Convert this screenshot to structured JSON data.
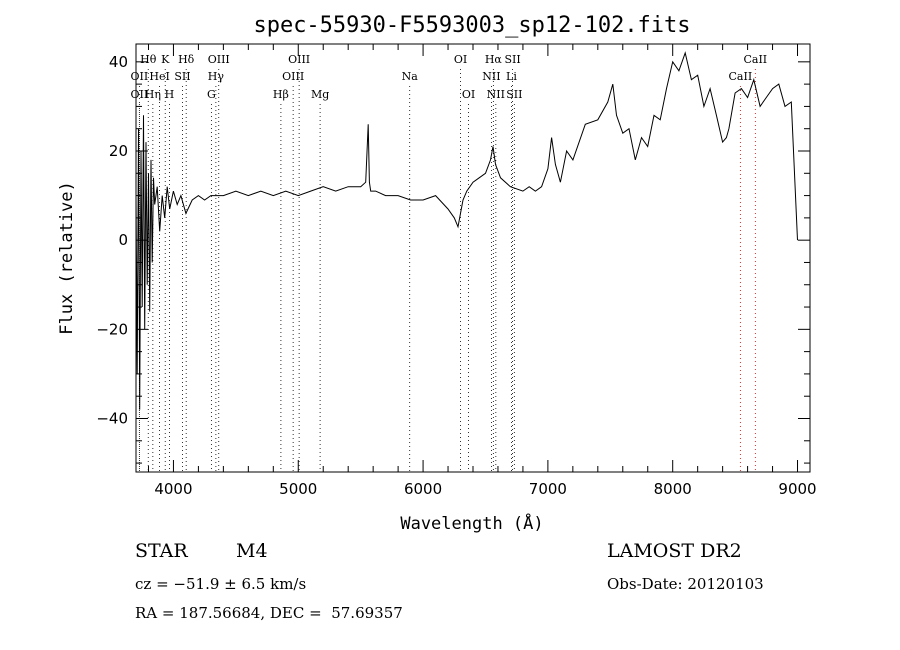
{
  "chart_data": {
    "type": "line",
    "title": "spec-55930-F5593003_sp12-102.fits",
    "xlabel": "Wavelength (Å)",
    "ylabel": "Flux (relative)",
    "xlim": [
      3700,
      9100
    ],
    "ylim": [
      -52,
      44
    ],
    "x_ticks": [
      4000,
      5000,
      6000,
      7000,
      8000,
      9000
    ],
    "y_ticks": [
      -40,
      -20,
      0,
      20,
      40
    ],
    "grid": false,
    "series": [
      {
        "color": "#000000",
        "x": [
          3700,
          3710,
          3720,
          3730,
          3740,
          3750,
          3760,
          3770,
          3780,
          3790,
          3800,
          3810,
          3820,
          3830,
          3840,
          3850,
          3870,
          3890,
          3910,
          3930,
          3950,
          3970,
          4000,
          4030,
          4060,
          4100,
          4150,
          4200,
          4250,
          4300,
          4400,
          4500,
          4600,
          4700,
          4800,
          4900,
          5000,
          5100,
          5200,
          5300,
          5400,
          5500,
          5540,
          5560,
          5570,
          5580,
          5620,
          5700,
          5800,
          5900,
          6000,
          6100,
          6200,
          6250,
          6280,
          6300,
          6320,
          6350,
          6400,
          6450,
          6500,
          6540,
          6560,
          6580,
          6620,
          6700,
          6800,
          6850,
          6900,
          6950,
          7000,
          7030,
          7060,
          7100,
          7150,
          7200,
          7300,
          7400,
          7480,
          7520,
          7550,
          7600,
          7650,
          7700,
          7750,
          7800,
          7850,
          7900,
          7950,
          8000,
          8050,
          8100,
          8150,
          8200,
          8250,
          8300,
          8350,
          8400,
          8430,
          8450,
          8500,
          8550,
          8600,
          8650,
          8700,
          8750,
          8800,
          8850,
          8900,
          8950,
          9000
        ],
        "values": [
          10,
          -30,
          25,
          -38,
          20,
          -15,
          28,
          -20,
          22,
          -10,
          15,
          -16,
          18,
          -5,
          14,
          8,
          12,
          2,
          10,
          5,
          12,
          7,
          11,
          8,
          10,
          6,
          9,
          10,
          9,
          10,
          10,
          11,
          10,
          11,
          10,
          11,
          10,
          11,
          12,
          11,
          12,
          12,
          13,
          26,
          13,
          11,
          11,
          10,
          10,
          9,
          9,
          10,
          7,
          5,
          3,
          6,
          9,
          11,
          13,
          14,
          15,
          18,
          21,
          17,
          14,
          12,
          11,
          12,
          11,
          12,
          16,
          23,
          17,
          13,
          20,
          18,
          26,
          27,
          31,
          35,
          28,
          24,
          25,
          18,
          23,
          21,
          28,
          27,
          34,
          40,
          38,
          42,
          36,
          37,
          30,
          34,
          28,
          22,
          23,
          25,
          33,
          34,
          32,
          36,
          30,
          32,
          34,
          35,
          30,
          31,
          0
        ]
      }
    ],
    "annotations": [
      {
        "label": "Hθ",
        "x": 3798,
        "row": 1
      },
      {
        "label": "K",
        "x": 3934,
        "row": 1
      },
      {
        "label": "Hδ",
        "x": 4102,
        "row": 1
      },
      {
        "label": "OIII",
        "x": 4363,
        "row": 1
      },
      {
        "label": "OIII",
        "x": 5007,
        "row": 1
      },
      {
        "label": "OI",
        "x": 6300,
        "row": 1
      },
      {
        "label": "Hα",
        "x": 6563,
        "row": 1
      },
      {
        "label": "SII",
        "x": 6717,
        "row": 1
      },
      {
        "label": "CaII",
        "x": 8662,
        "row": 1
      },
      {
        "label": "OII",
        "x": 3727,
        "row": 2
      },
      {
        "label": "HeI",
        "x": 3889,
        "row": 2
      },
      {
        "label": "SII",
        "x": 4072,
        "row": 2
      },
      {
        "label": "Hγ",
        "x": 4340,
        "row": 2
      },
      {
        "label": "OIII",
        "x": 4959,
        "row": 2
      },
      {
        "label": "Na",
        "x": 5893,
        "row": 2
      },
      {
        "label": "NII",
        "x": 6548,
        "row": 2
      },
      {
        "label": "Li",
        "x": 6708,
        "row": 2
      },
      {
        "label": "CaII",
        "x": 8542,
        "row": 2
      },
      {
        "label": "OII",
        "x": 3727,
        "row": 3
      },
      {
        "label": "Hη",
        "x": 3835,
        "row": 3
      },
      {
        "label": "H",
        "x": 3968,
        "row": 3
      },
      {
        "label": "G",
        "x": 4304,
        "row": 3
      },
      {
        "label": "Hβ",
        "x": 4861,
        "row": 3
      },
      {
        "label": "Mg",
        "x": 5175,
        "row": 3
      },
      {
        "label": "OI",
        "x": 6364,
        "row": 3
      },
      {
        "label": "NII",
        "x": 6583,
        "row": 3
      },
      {
        "label": "SII",
        "x": 6731,
        "row": 3
      }
    ]
  },
  "info": {
    "object_class": "STAR",
    "object_subclass": "M4",
    "survey": "LAMOST DR2",
    "cz": "cz = −51.9 ± 6.5 km/s",
    "obs_date": "Obs-Date: 20120103",
    "radec": "RA = 187.56684, DEC =  57.69357"
  }
}
